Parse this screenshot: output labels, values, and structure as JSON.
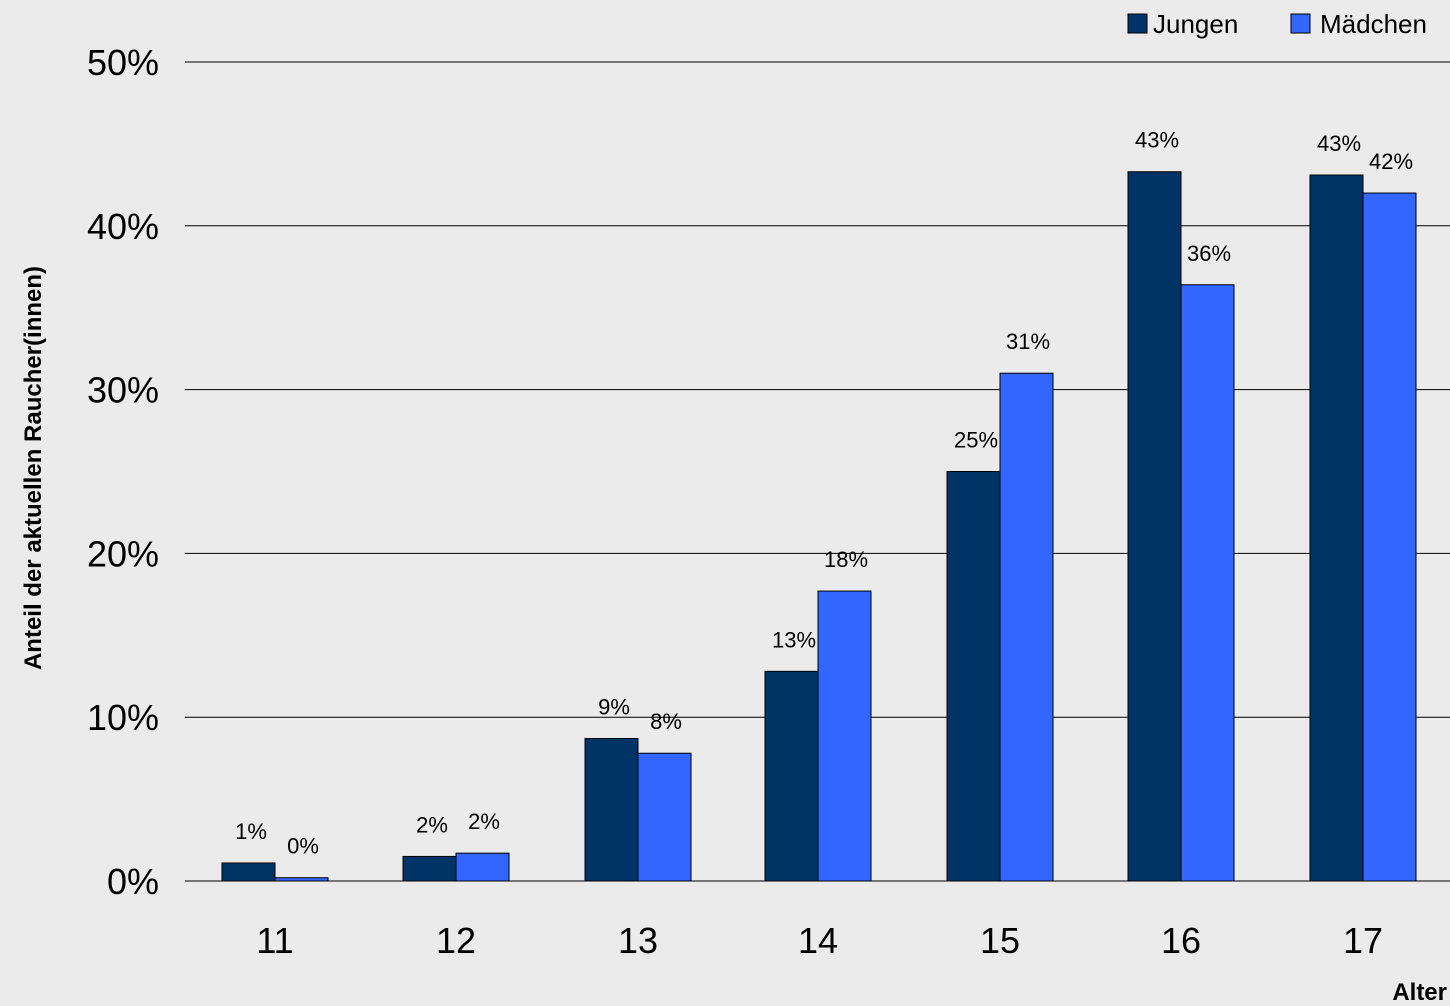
{
  "chart_data": {
    "type": "bar",
    "title": "",
    "xlabel": "Alter",
    "ylabel": "Anteil der aktuellen Raucher(innen)",
    "categories": [
      "11",
      "12",
      "13",
      "14",
      "15",
      "16",
      "17"
    ],
    "ylim": [
      0,
      50
    ],
    "yticks": [
      "0%",
      "10%",
      "20%",
      "30%",
      "40%",
      "50%"
    ],
    "grid": true,
    "legend_position": "top-right",
    "series": [
      {
        "name": "Jungen",
        "color": "#003366",
        "values": [
          1.1,
          1.5,
          8.7,
          12.8,
          25.0,
          43.3,
          43.1
        ],
        "labels": [
          "1%",
          "2%",
          "9%",
          "13%",
          "25%",
          "43%",
          "43%"
        ]
      },
      {
        "name": "Mädchen",
        "color": "#3366ff",
        "values": [
          0.2,
          1.7,
          7.8,
          17.7,
          31.0,
          36.4,
          42.0
        ],
        "labels": [
          "0%",
          "2%",
          "8%",
          "18%",
          "31%",
          "36%",
          "42%"
        ]
      }
    ]
  }
}
